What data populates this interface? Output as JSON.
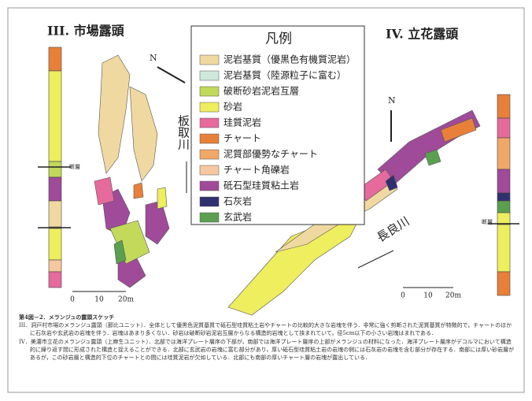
{
  "figure": {
    "left_title": "III. 市場露頭",
    "right_title": "IV. 立花露頭",
    "legend": {
      "title": "凡例",
      "items": [
        {
          "label": "泥岩基質（優黒色有機質泥岩）",
          "color": "#f0d9a0"
        },
        {
          "label": "泥岩基質（陸源粒子に富む）",
          "color": "#cfe8dc"
        },
        {
          "label": "破断砂岩泥岩互層",
          "color": "#c2d95a"
        },
        {
          "label": "砂岩",
          "color": "#eeee5e"
        },
        {
          "label": "珪質泥岩",
          "color": "#e66a9c"
        },
        {
          "label": "チャート",
          "color": "#e8803a"
        },
        {
          "label": "泥質部優勢なチャート",
          "color": "#f0a868"
        },
        {
          "label": "チャート角礫岩",
          "color": "#f6c8a0"
        },
        {
          "label": "砥石型珪質粘土岩",
          "color": "#a04a9a"
        },
        {
          "label": "石灰岩",
          "color": "#303070"
        },
        {
          "label": "玄武岩",
          "color": "#5aa050"
        }
      ]
    },
    "rivers": [
      "板取川",
      "長良川"
    ],
    "north": [
      "N",
      "N"
    ],
    "left_scale": [
      "0",
      "10",
      "20m"
    ],
    "right_scale": [
      "0",
      "10",
      "20m"
    ],
    "left_column_fault": "断層",
    "right_column_fault": "断層"
  },
  "caption": {
    "title": "第4図－2．メランジュの露頭スケッチ",
    "paragraphs": [
      "III．洞戸村市場のメランジュ露頭（那比ユニット）．全体として優黒色泥質基質で砥石型珪質粘土岩やチャートの比較的大きな岩塊を伴う．非常に強く剪断された泥質基質が特徴的で，チャートのほかに石灰岩や玄武岩の岩塊を伴う．岩塊はあまり多くない．砂岩は破断砂岩泥岩互層からなる構造的岩塊として挟まれていて，径5cm以下の小さい岩塊はまれである．",
      "IV．美濃市立花のメランジュ露頭（上麻生ユニット）．北部では海洋プレート層序の下部が，南部では海洋プレート層序の上部がメランジュの材料になった．海洋プレート層序がデコルマにおいて構造的に繰り返す間に形成された構造と捉えることができる．北部に玄武岩の岩塊に富む部分があり，厚い砥石型珪質粘土岩の岩塊の側には石灰岩の岩塊を含む部分が存在する．南部には厚い砂岩層があるが，この砂岩層と構造的下位のチャートとの間には珪質泥岩が欠如している．北部にも南部の厚いチャート層の岩塊が露出している．"
    ]
  }
}
